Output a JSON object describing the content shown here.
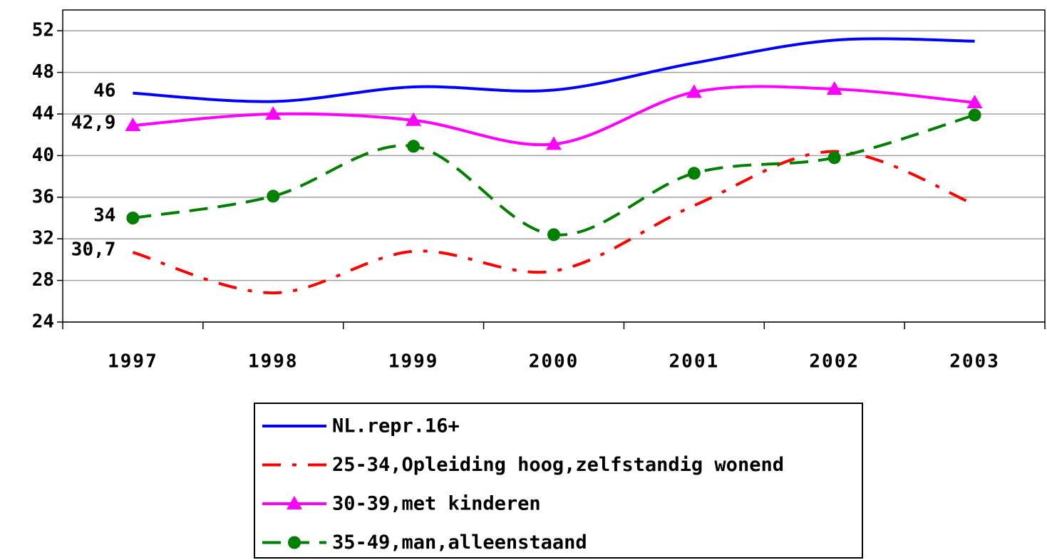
{
  "chart_data": {
    "type": "line",
    "categories": [
      "1997",
      "1998",
      "1999",
      "2000",
      "2001",
      "2002",
      "2003"
    ],
    "series": [
      {
        "name": "NL.repr.16+",
        "color": "#0000ff",
        "dash": "solid",
        "marker": "none",
        "values": [
          46,
          45.2,
          46.6,
          46.3,
          48.9,
          51.1,
          51.0
        ],
        "value_labels": [
          "46",
          null,
          null,
          null,
          null,
          null,
          null
        ]
      },
      {
        "name": "25-34,Opleiding hoog,zelfstandig wonend",
        "color": "#ff0000",
        "dash": "dashdot",
        "marker": "none",
        "values": [
          30.7,
          26.8,
          30.8,
          28.9,
          35.2,
          40.4,
          35.3
        ],
        "value_labels": [
          "30,7",
          null,
          null,
          null,
          null,
          null,
          null
        ]
      },
      {
        "name": "30-39,met kinderen",
        "color": "#ff00ff",
        "dash": "solid",
        "marker": "triangle",
        "values": [
          42.9,
          44.0,
          43.4,
          41.1,
          46.1,
          46.4,
          45.1
        ],
        "value_labels": [
          "42,9",
          null,
          null,
          null,
          null,
          null,
          null
        ]
      },
      {
        "name": "35-49,man,alleenstaand",
        "color": "#008000",
        "dash": "dashed",
        "marker": "circle",
        "values": [
          34,
          36.1,
          40.9,
          32.4,
          38.3,
          39.8,
          43.9
        ],
        "value_labels": [
          "34",
          null,
          null,
          null,
          null,
          null,
          null
        ]
      }
    ],
    "ylim": [
      24,
      54
    ],
    "yticks": [
      24,
      28,
      32,
      36,
      40,
      44,
      48,
      52
    ],
    "grid": true,
    "legend": "bottom"
  }
}
